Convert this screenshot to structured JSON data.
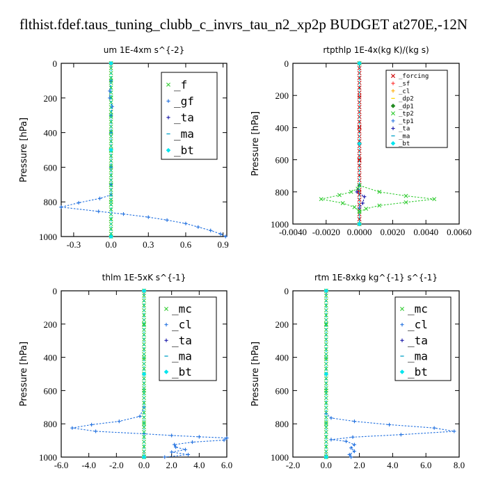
{
  "title": "flthist.fdef.taus_tuning_clubb_c_invrs_tau_n2_xp2p  BUDGET at270E,-12N",
  "chart_data": [
    {
      "type": "line",
      "title": "um   1E-4xm s^{-2}",
      "ylabel": "Pressure [hPa]",
      "xlim": [
        -0.4,
        0.93
      ],
      "ylim": [
        1000,
        0
      ],
      "xticks": [
        "-0.3",
        "0.0",
        "0.3",
        "0.6",
        "0.9"
      ],
      "xtick_values": [
        -0.3,
        0.0,
        0.3,
        0.6,
        0.9
      ],
      "yticks": [
        "0",
        "200",
        "400",
        "600",
        "800",
        "1000"
      ],
      "ytick_values": [
        0,
        200,
        400,
        600,
        800,
        1000
      ],
      "legend_position": "top-right",
      "series": [
        {
          "name": "_f",
          "color": "#33cc33",
          "marker": "x",
          "points": [
            [
              0,
              0
            ],
            [
              0,
              100
            ],
            [
              0,
              200
            ],
            [
              0,
              300
            ],
            [
              0,
              400
            ],
            [
              0,
              500
            ],
            [
              0,
              600
            ],
            [
              0,
              700
            ],
            [
              0,
              800
            ],
            [
              0,
              900
            ],
            [
              0,
              1000
            ]
          ]
        },
        {
          "name": "_gf",
          "color": "#1f6fdf",
          "marker": "plus",
          "points": [
            [
              0,
              0
            ],
            [
              0,
              100
            ],
            [
              -0.01,
              160
            ],
            [
              -0.01,
              200
            ],
            [
              0.01,
              250
            ],
            [
              0,
              300
            ],
            [
              0,
              400
            ],
            [
              0,
              500
            ],
            [
              0,
              600
            ],
            [
              0,
              700
            ],
            [
              0,
              760
            ],
            [
              -0.09,
              780
            ],
            [
              -0.26,
              805
            ],
            [
              -0.4,
              830
            ]
          ]
        },
        {
          "name": "_ta",
          "color": "#1a1aaa",
          "marker": "plus",
          "points": [
            [
              0,
              0
            ],
            [
              0,
              500
            ],
            [
              0,
              1000
            ]
          ]
        },
        {
          "name": "_ma",
          "color": "#00a0c8",
          "marker": "dash",
          "points": [
            [
              0,
              0
            ],
            [
              0,
              500
            ],
            [
              0,
              1000
            ]
          ]
        },
        {
          "name": "_bt",
          "color": "#00e5ee",
          "marker": "diamond",
          "points": [
            [
              0,
              0
            ],
            [
              0,
              500
            ],
            [
              0,
              1000
            ]
          ]
        },
        {
          "name": "",
          "color": "#1f6fdf",
          "marker": "plus",
          "points": [
            [
              -0.4,
              830
            ],
            [
              -0.1,
              855
            ],
            [
              0.1,
              870
            ],
            [
              0.3,
              888
            ],
            [
              0.45,
              905
            ],
            [
              0.6,
              925
            ],
            [
              0.7,
              945
            ],
            [
              0.8,
              965
            ],
            [
              0.88,
              985
            ],
            [
              0.92,
              1000
            ]
          ]
        }
      ]
    },
    {
      "type": "line",
      "title": "rtpthlp   1E-4x(kg K)/(kg s)",
      "ylabel": "Pressure [hPa]",
      "xlim": [
        -0.004,
        0.006
      ],
      "ylim": [
        1000,
        0
      ],
      "xticks": [
        "-0.0040",
        "-0.0020",
        "0.0000",
        "0.0020",
        "0.0040",
        "0.0060"
      ],
      "xtick_values": [
        -0.004,
        -0.002,
        0.0,
        0.002,
        0.004,
        0.006
      ],
      "yticks": [
        "0",
        "200",
        "400",
        "600",
        "800",
        "1000"
      ],
      "ytick_values": [
        0,
        200,
        400,
        600,
        800,
        1000
      ],
      "legend_position": "top-right",
      "series": [
        {
          "name": "_forcing",
          "color": "#cc0000",
          "marker": "x",
          "points": [
            [
              0,
              0
            ],
            [
              0,
              200
            ],
            [
              0,
              400
            ],
            [
              0,
              600
            ],
            [
              0,
              800
            ],
            [
              0,
              1000
            ]
          ]
        },
        {
          "name": "_sf",
          "color": "#ff3333",
          "marker": "plus",
          "points": [
            [
              0,
              0
            ],
            [
              0,
              500
            ],
            [
              0,
              1000
            ]
          ]
        },
        {
          "name": "_cl",
          "color": "#ffaa00",
          "marker": "plus",
          "points": [
            [
              0,
              0
            ],
            [
              0,
              500
            ],
            [
              0,
              1000
            ]
          ]
        },
        {
          "name": "_dp2",
          "color": "#ffd700",
          "marker": "dash",
          "points": [
            [
              0,
              0
            ],
            [
              0,
              500
            ],
            [
              0,
              1000
            ]
          ]
        },
        {
          "name": "_dp1",
          "color": "#228b22",
          "marker": "diamond",
          "points": [
            [
              0,
              0
            ],
            [
              0,
              500
            ],
            [
              0,
              1000
            ]
          ]
        },
        {
          "name": "_tp2",
          "color": "#33cc33",
          "marker": "x",
          "points": [
            [
              0,
              0
            ],
            [
              0,
              760
            ],
            [
              -0.0001,
              780
            ],
            [
              -0.0005,
              800
            ],
            [
              -0.0012,
              820
            ],
            [
              -0.0023,
              845
            ],
            [
              -0.001,
              870
            ],
            [
              -0.0003,
              895
            ],
            [
              0,
              920
            ],
            [
              0,
              1000
            ]
          ]
        },
        {
          "name": "_tp1",
          "color": "#1f6fdf",
          "marker": "plus",
          "points": [
            [
              0,
              0
            ],
            [
              0,
              500
            ],
            [
              0,
              1000
            ]
          ]
        },
        {
          "name": "_ta",
          "color": "#1a1aaa",
          "marker": "plus",
          "points": [
            [
              0,
              0
            ],
            [
              0,
              760
            ],
            [
              -0.00015,
              800
            ],
            [
              0.0003,
              830
            ],
            [
              0.0002,
              870
            ],
            [
              0,
              900
            ],
            [
              0,
              1000
            ]
          ]
        },
        {
          "name": "_ma",
          "color": "#00a0c8",
          "marker": "dash",
          "points": [
            [
              0,
              0
            ],
            [
              0,
              500
            ],
            [
              0,
              1000
            ]
          ]
        },
        {
          "name": "_bt",
          "color": "#00e5ee",
          "marker": "diamond",
          "points": [
            [
              0,
              0
            ],
            [
              0,
              500
            ],
            [
              0,
              1000
            ]
          ]
        },
        {
          "name": "",
          "color": "#33cc33",
          "marker": "x",
          "points": [
            [
              0,
              760
            ],
            [
              0.0012,
              800
            ],
            [
              0.0028,
              825
            ],
            [
              0.0045,
              845
            ],
            [
              0.0028,
              865
            ],
            [
              0.0012,
              885
            ],
            [
              0.0004,
              905
            ],
            [
              0,
              925
            ]
          ]
        }
      ]
    },
    {
      "type": "line",
      "title": "thlm   1E-5xK s^{-1}",
      "ylabel": "Pressure [hPa]",
      "xlim": [
        -6.0,
        6.0
      ],
      "ylim": [
        1000,
        0
      ],
      "xticks": [
        "-6.0",
        "-4.0",
        "-2.0",
        "0.0",
        "2.0",
        "4.0",
        "6.0"
      ],
      "xtick_values": [
        -6.0,
        -4.0,
        -2.0,
        0.0,
        2.0,
        4.0,
        6.0
      ],
      "yticks": [
        "0",
        "200",
        "400",
        "600",
        "800",
        "1000"
      ],
      "ytick_values": [
        0,
        200,
        400,
        600,
        800,
        1000
      ],
      "legend_position": "top-right",
      "series": [
        {
          "name": "_mc",
          "color": "#33cc33",
          "marker": "x",
          "points": [
            [
              0,
              0
            ],
            [
              0,
              200
            ],
            [
              0,
              400
            ],
            [
              0,
              600
            ],
            [
              0,
              800
            ],
            [
              0,
              1000
            ]
          ]
        },
        {
          "name": "_cl",
          "color": "#1f6fdf",
          "marker": "plus",
          "points": [
            [
              0,
              0
            ],
            [
              0,
              700
            ],
            [
              -0.3,
              755
            ],
            [
              -1.8,
              785
            ],
            [
              -3.8,
              805
            ],
            [
              -5.2,
              825
            ],
            [
              -3.5,
              845
            ],
            [
              0,
              860
            ],
            [
              2,
              870
            ],
            [
              4,
              878
            ],
            [
              6,
              885
            ],
            [
              5.8,
              898
            ],
            [
              3.5,
              910
            ],
            [
              2.2,
              925
            ],
            [
              2.3,
              940
            ],
            [
              3,
              955
            ],
            [
              2,
              970
            ],
            [
              3.2,
              985
            ],
            [
              1.5,
              1000
            ]
          ]
        },
        {
          "name": "_ta",
          "color": "#1a1aaa",
          "marker": "plus",
          "points": [
            [
              0,
              0
            ],
            [
              0,
              500
            ],
            [
              0,
              1000
            ]
          ]
        },
        {
          "name": "_ma",
          "color": "#00a0c8",
          "marker": "dash",
          "points": [
            [
              0,
              0
            ],
            [
              0,
              500
            ],
            [
              0,
              1000
            ]
          ]
        },
        {
          "name": "_bt",
          "color": "#00e5ee",
          "marker": "diamond",
          "points": [
            [
              0,
              0
            ],
            [
              0,
              500
            ],
            [
              0,
              1000
            ]
          ]
        }
      ]
    },
    {
      "type": "line",
      "title": "rtm   1E-8xkg kg^{-1} s^{-1}",
      "ylabel": "Pressure [hPa]",
      "xlim": [
        -2.0,
        8.0
      ],
      "ylim": [
        1000,
        0
      ],
      "xticks": [
        "-2.0",
        "0.0",
        "2.0",
        "4.0",
        "6.0",
        "8.0"
      ],
      "xtick_values": [
        -2.0,
        0.0,
        2.0,
        4.0,
        6.0,
        8.0
      ],
      "yticks": [
        "0",
        "200",
        "400",
        "600",
        "800",
        "1000"
      ],
      "ytick_values": [
        0,
        200,
        400,
        600,
        800,
        1000
      ],
      "legend_position": "top-right",
      "series": [
        {
          "name": "_mc",
          "color": "#33cc33",
          "marker": "x",
          "points": [
            [
              0,
              0
            ],
            [
              0,
              200
            ],
            [
              0,
              400
            ],
            [
              0,
              600
            ],
            [
              0,
              800
            ],
            [
              0,
              1000
            ]
          ]
        },
        {
          "name": "_cl",
          "color": "#1f6fdf",
          "marker": "plus",
          "points": [
            [
              0,
              0
            ],
            [
              0,
              740
            ],
            [
              0.3,
              765
            ],
            [
              1.7,
              785
            ],
            [
              3.8,
              805
            ],
            [
              6.5,
              825
            ],
            [
              7.7,
              845
            ],
            [
              4.5,
              865
            ],
            [
              1.6,
              880
            ],
            [
              0.3,
              895
            ],
            [
              1.2,
              905
            ],
            [
              1.7,
              925
            ],
            [
              1.5,
              945
            ],
            [
              1.7,
              965
            ],
            [
              1.4,
              985
            ],
            [
              1.5,
              1000
            ]
          ]
        },
        {
          "name": "_ta",
          "color": "#1a1aaa",
          "marker": "plus",
          "points": [
            [
              0,
              0
            ],
            [
              0,
              500
            ],
            [
              0,
              1000
            ]
          ]
        },
        {
          "name": "_ma",
          "color": "#00a0c8",
          "marker": "dash",
          "points": [
            [
              0,
              0
            ],
            [
              0,
              500
            ],
            [
              0,
              1000
            ]
          ]
        },
        {
          "name": "_bt",
          "color": "#00e5ee",
          "marker": "diamond",
          "points": [
            [
              0,
              0
            ],
            [
              0,
              500
            ],
            [
              0,
              1000
            ]
          ]
        }
      ]
    }
  ]
}
